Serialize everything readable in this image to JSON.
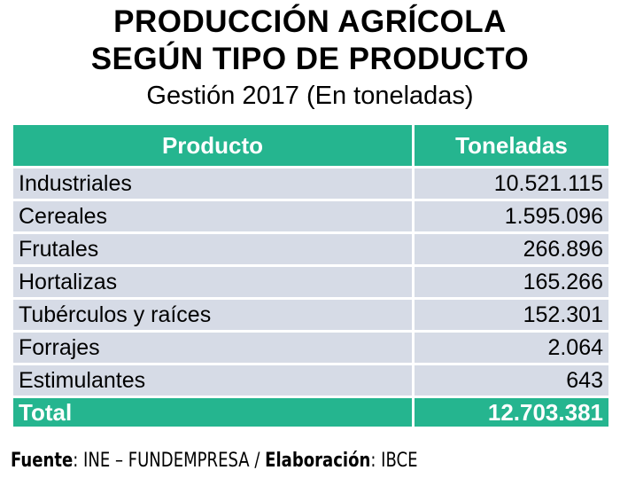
{
  "title": {
    "line1": "PRODUCCIÓN AGRÍCOLA",
    "line2": "SEGÚN TIPO DE PRODUCTO",
    "subtitle": "Gestión 2017 (En toneladas)"
  },
  "colors": {
    "header_bg": "#25b58f",
    "row_bg": "#d6dbe6",
    "header_text": "#ffffff"
  },
  "chart_data": {
    "type": "table",
    "title": "PRODUCCIÓN AGRÍCOLA SEGÚN TIPO DE PRODUCTO",
    "subtitle": "Gestión 2017 (En toneladas)",
    "columns": [
      "Producto",
      "Toneladas"
    ],
    "rows": [
      {
        "product": "Industriales",
        "tons": "10.521.115"
      },
      {
        "product": "Cereales",
        "tons": "1.595.096"
      },
      {
        "product": "Frutales",
        "tons": "266.896"
      },
      {
        "product": "Hortalizas",
        "tons": "165.266"
      },
      {
        "product": "Tubérculos y raíces",
        "tons": "152.301"
      },
      {
        "product": "Forrajes",
        "tons": "2.064"
      },
      {
        "product": "Estimulantes",
        "tons": "643"
      }
    ],
    "total": {
      "label": "Total",
      "tons": "12.703.381"
    }
  },
  "source": {
    "label1": "Fuente",
    "text1": ": INE – FUNDEMPRESA / ",
    "label2": "Elaboración",
    "text2": ": IBCE"
  }
}
